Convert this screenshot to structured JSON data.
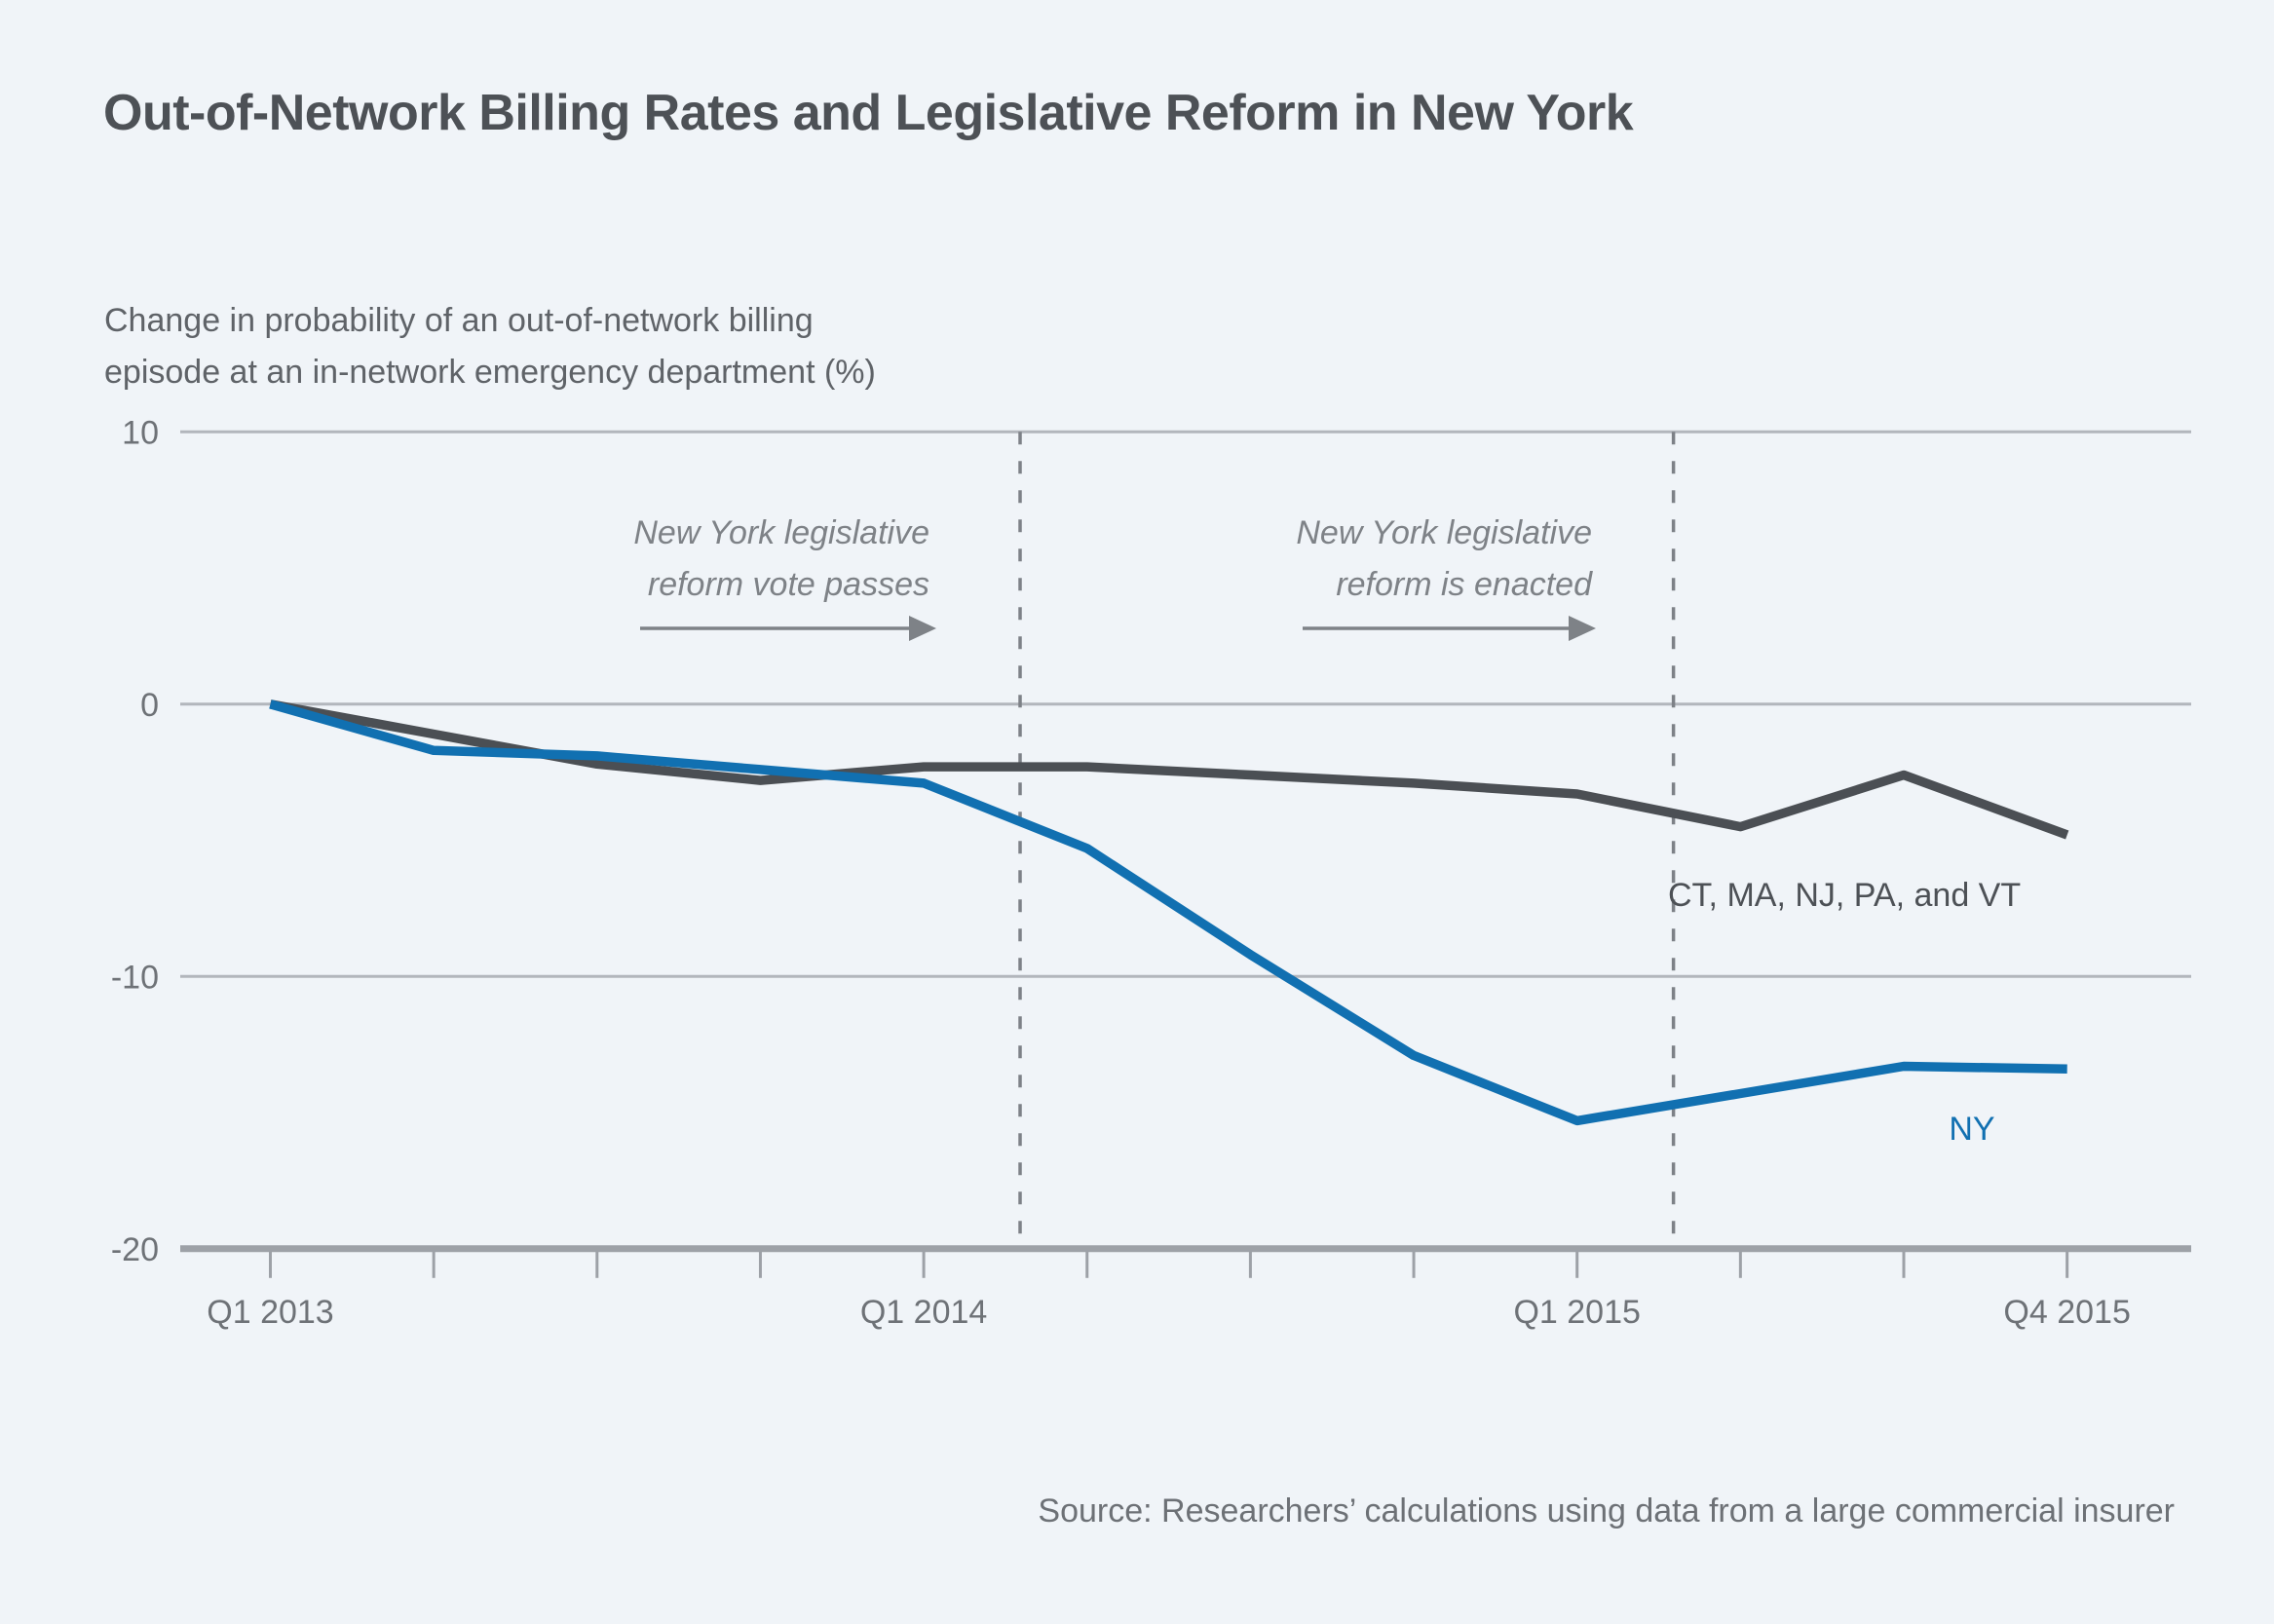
{
  "annotations": {
    "vote": {
      "line1": "New York legislative",
      "line2": "reform vote passes",
      "x_quarter_index": 4.59
    },
    "enacted": {
      "line1": "New York legislative",
      "line2": "reform is enacted",
      "x_quarter_index": 8.59
    }
  },
  "source": "Source: Researchers’ calculations using data from a large commercial insurer",
  "chart_data": {
    "type": "line",
    "title": "Out-of-Network Billing Rates and Legislative Reform in New York",
    "ylabel_lines": [
      "Change in probability of an out-of-network billing",
      "episode at an in-network emergency department (%)"
    ],
    "x": [
      "Q1 2013",
      "Q2 2013",
      "Q3 2013",
      "Q4 2013",
      "Q1 2014",
      "Q2 2014",
      "Q3 2014",
      "Q4 2014",
      "Q1 2015",
      "Q2 2015",
      "Q3 2015",
      "Q4 2015"
    ],
    "x_shown_tick_indices": [
      0,
      4,
      8,
      11
    ],
    "ylim": [
      -20,
      10
    ],
    "y_ticks": [
      10,
      0,
      -10,
      -20
    ],
    "grid": "horizontal-only",
    "legend_position": "inline-labels",
    "series": [
      {
        "name": "CT, MA, NJ, PA, and VT",
        "color": "#4b4f54",
        "values": [
          0,
          -1.1,
          -2.2,
          -2.8,
          -2.3,
          -2.3,
          -2.6,
          -2.9,
          -3.3,
          -4.5,
          -2.6,
          -4.8
        ]
      },
      {
        "name": "NY",
        "color": "#1170b1",
        "values": [
          0,
          -1.7,
          -1.9,
          -2.4,
          -2.9,
          -5.3,
          -9.2,
          -12.9,
          -15.3,
          -14.3,
          -13.3,
          -13.4
        ]
      }
    ]
  }
}
